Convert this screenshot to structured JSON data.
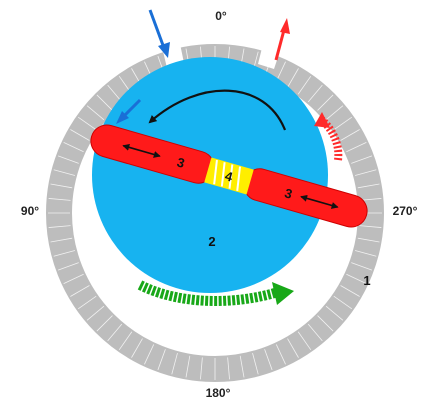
{
  "angle_labels": {
    "top": "0°",
    "left": "90°",
    "right": "270°",
    "bottom": "180°"
  },
  "part_labels": {
    "ring": "1",
    "rotor": "2",
    "vane_left": "3",
    "vane_right": "3",
    "spring": "4"
  },
  "colors": {
    "ring": "#bdbdbd",
    "ring_tick": "#ffffff",
    "rotor": "#17b3f0",
    "vane": "#ff1a1a",
    "vane_outline": "#cc0000",
    "spring_bg": "#ffee00",
    "spring_coil": "#ffffff",
    "rotation_arrow": "#111111",
    "intake_arrow": "#1a6fd6",
    "exhaust_arrow": "#ff2a2a",
    "flow_arrow": "#18a818"
  },
  "icons": {
    "rotation": "curved-arrow-icon",
    "intake": "inlet-arrow-icon",
    "exhaust": "outlet-arrow-icon",
    "flow": "flow-arrow-icon"
  }
}
